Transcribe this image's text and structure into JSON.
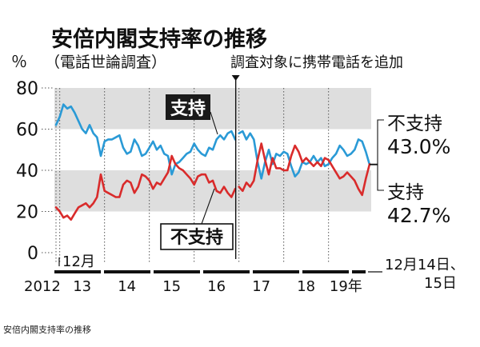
{
  "chart_data": {
    "type": "line",
    "title": "安倍内閣支持率の推移",
    "subtitle": "（電話世論調査）",
    "y_unit": "％",
    "ylim": [
      0,
      80
    ],
    "y_ticks": [
      "0",
      "20",
      "40",
      "60",
      "80"
    ],
    "shaded_bands": [
      [
        20,
        40
      ],
      [
        60,
        80
      ]
    ],
    "x_labels": {
      "year_start": "2012",
      "month_start": "12月",
      "years": [
        "13",
        "14",
        "15",
        "16",
        "17",
        "18",
        "19年"
      ],
      "end_date_line1": "12月14日、",
      "end_date_line2": "15日"
    },
    "xlim": [
      "2012-12",
      "2019-12"
    ],
    "marker_date": "2017-01",
    "marker_label": "調査対象に携帯電話を追加",
    "series": [
      {
        "name": "支持",
        "color": "#2a9ad6",
        "label_final": "42.7%",
        "segments": [
          [
            [
              "2012-12",
              62
            ],
            [
              "2013-01",
              66
            ],
            [
              "2013-02",
              72
            ],
            [
              "2013-03",
              70
            ],
            [
              "2013-04",
              71
            ],
            [
              "2013-05",
              68
            ],
            [
              "2013-06",
              64
            ],
            [
              "2013-07",
              60
            ],
            [
              "2013-08",
              58
            ],
            [
              "2013-09",
              62
            ],
            [
              "2013-10",
              58
            ],
            [
              "2013-11",
              56
            ],
            [
              "2013-12",
              47
            ],
            [
              "2014-01",
              54
            ],
            [
              "2014-02",
              55
            ],
            [
              "2014-03",
              55
            ],
            [
              "2014-04",
              56
            ],
            [
              "2014-05",
              57
            ],
            [
              "2014-06",
              51
            ],
            [
              "2014-07",
              48
            ],
            [
              "2014-08",
              49
            ],
            [
              "2014-09",
              55
            ],
            [
              "2014-10",
              52
            ],
            [
              "2014-11",
              47
            ],
            [
              "2014-12",
              48
            ],
            [
              "2015-01",
              51
            ],
            [
              "2015-02",
              54
            ],
            [
              "2015-03",
              50
            ],
            [
              "2015-04",
              52
            ],
            [
              "2015-05",
              48
            ],
            [
              "2015-06",
              47
            ],
            [
              "2015-07",
              38
            ],
            [
              "2015-08",
              43
            ],
            [
              "2015-09",
              44
            ],
            [
              "2015-10",
              46
            ],
            [
              "2015-11",
              48
            ],
            [
              "2015-12",
              49
            ],
            [
              "2016-01",
              53
            ],
            [
              "2016-02",
              50
            ],
            [
              "2016-03",
              48
            ],
            [
              "2016-04",
              47
            ],
            [
              "2016-05",
              51
            ],
            [
              "2016-06",
              50
            ],
            [
              "2016-07",
              55
            ],
            [
              "2016-08",
              57
            ],
            [
              "2016-09",
              55
            ],
            [
              "2016-10",
              58
            ],
            [
              "2016-11",
              59
            ],
            [
              "2016-12",
              55
            ]
          ],
          [
            [
              "2017-01",
              58
            ],
            [
              "2017-02",
              59
            ],
            [
              "2017-03",
              55
            ],
            [
              "2017-04",
              58
            ],
            [
              "2017-05",
              55
            ],
            [
              "2017-06",
              44
            ],
            [
              "2017-07",
              36
            ],
            [
              "2017-08",
              44
            ],
            [
              "2017-09",
              50
            ],
            [
              "2017-10",
              43
            ],
            [
              "2017-11",
              48
            ],
            [
              "2017-12",
              47
            ],
            [
              "2018-01",
              49
            ],
            [
              "2018-02",
              48
            ],
            [
              "2018-03",
              42
            ],
            [
              "2018-04",
              37
            ],
            [
              "2018-05",
              39
            ],
            [
              "2018-06",
              44
            ],
            [
              "2018-07",
              43
            ],
            [
              "2018-08",
              44
            ],
            [
              "2018-09",
              47
            ],
            [
              "2018-10",
              44
            ],
            [
              "2018-11",
              46
            ],
            [
              "2018-12",
              42
            ],
            [
              "2019-01",
              43
            ],
            [
              "2019-02",
              46
            ],
            [
              "2019-03",
              48
            ],
            [
              "2019-04",
              52
            ],
            [
              "2019-05",
              50
            ],
            [
              "2019-06",
              47
            ],
            [
              "2019-07",
              48
            ],
            [
              "2019-08",
              50
            ],
            [
              "2019-09",
              55
            ],
            [
              "2019-10",
              54
            ],
            [
              "2019-11",
              49
            ],
            [
              "2019-12",
              42.7
            ]
          ]
        ]
      },
      {
        "name": "不支持",
        "color": "#d92b2b",
        "label_final": "43.0%",
        "segments": [
          [
            [
              "2012-12",
              22
            ],
            [
              "2013-01",
              20
            ],
            [
              "2013-02",
              17
            ],
            [
              "2013-03",
              18
            ],
            [
              "2013-04",
              16
            ],
            [
              "2013-05",
              19
            ],
            [
              "2013-06",
              22
            ],
            [
              "2013-07",
              23
            ],
            [
              "2013-08",
              24
            ],
            [
              "2013-09",
              22
            ],
            [
              "2013-10",
              24
            ],
            [
              "2013-11",
              27
            ],
            [
              "2013-12",
              38
            ],
            [
              "2014-01",
              30
            ],
            [
              "2014-02",
              29
            ],
            [
              "2014-03",
              28
            ],
            [
              "2014-04",
              27
            ],
            [
              "2014-05",
              27
            ],
            [
              "2014-06",
              33
            ],
            [
              "2014-07",
              35
            ],
            [
              "2014-08",
              34
            ],
            [
              "2014-09",
              29
            ],
            [
              "2014-10",
              32
            ],
            [
              "2014-11",
              38
            ],
            [
              "2014-12",
              37
            ],
            [
              "2015-01",
              35
            ],
            [
              "2015-02",
              31
            ],
            [
              "2015-03",
              34
            ],
            [
              "2015-04",
              33
            ],
            [
              "2015-05",
              36
            ],
            [
              "2015-06",
              39
            ],
            [
              "2015-07",
              47
            ],
            [
              "2015-08",
              43
            ],
            [
              "2015-09",
              41
            ],
            [
              "2015-10",
              40
            ],
            [
              "2015-11",
              38
            ],
            [
              "2015-12",
              36
            ],
            [
              "2016-01",
              33
            ],
            [
              "2016-02",
              37
            ],
            [
              "2016-03",
              38
            ],
            [
              "2016-04",
              38
            ],
            [
              "2016-05",
              34
            ],
            [
              "2016-06",
              35
            ],
            [
              "2016-07",
              30
            ],
            [
              "2016-08",
              29
            ],
            [
              "2016-09",
              32
            ],
            [
              "2016-10",
              29
            ],
            [
              "2016-11",
              27
            ],
            [
              "2016-12",
              31
            ]
          ],
          [
            [
              "2017-01",
              32
            ],
            [
              "2017-02",
              30
            ],
            [
              "2017-03",
              34
            ],
            [
              "2017-04",
              32
            ],
            [
              "2017-05",
              35
            ],
            [
              "2017-06",
              45
            ],
            [
              "2017-07",
              53
            ],
            [
              "2017-08",
              45
            ],
            [
              "2017-09",
              38
            ],
            [
              "2017-10",
              46
            ],
            [
              "2017-11",
              41
            ],
            [
              "2017-12",
              41
            ],
            [
              "2018-01",
              40
            ],
            [
              "2018-02",
              40
            ],
            [
              "2018-03",
              47
            ],
            [
              "2018-04",
              52
            ],
            [
              "2018-05",
              49
            ],
            [
              "2018-06",
              44
            ],
            [
              "2018-07",
              46
            ],
            [
              "2018-08",
              44
            ],
            [
              "2018-09",
              42
            ],
            [
              "2018-10",
              44
            ],
            [
              "2018-11",
              42
            ],
            [
              "2018-12",
              46
            ],
            [
              "2019-01",
              45
            ],
            [
              "2019-02",
              42
            ],
            [
              "2019-03",
              39
            ],
            [
              "2019-04",
              36
            ],
            [
              "2019-05",
              37
            ],
            [
              "2019-06",
              39
            ],
            [
              "2019-07",
              37
            ],
            [
              "2019-08",
              35
            ],
            [
              "2019-09",
              31
            ],
            [
              "2019-10",
              28
            ],
            [
              "2019-11",
              36
            ],
            [
              "2019-12",
              43.0
            ]
          ]
        ]
      }
    ]
  },
  "caption": "安倍内閣支持率の推移"
}
